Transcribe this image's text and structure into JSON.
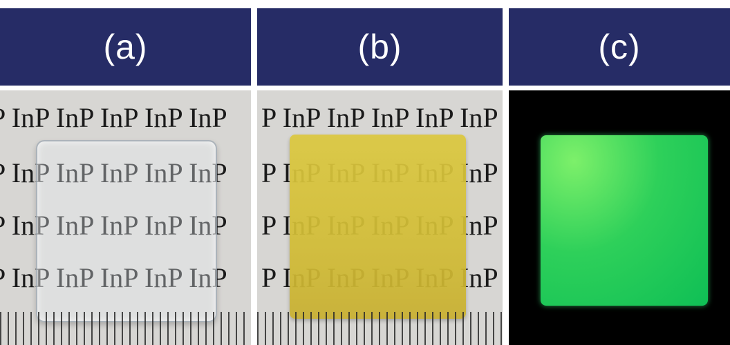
{
  "panels": [
    {
      "label": "(a)"
    },
    {
      "label": "(b)"
    },
    {
      "label": "(c)"
    }
  ],
  "paper_text": "InP",
  "colors": {
    "header_bg": "#262c66",
    "header_text": "#ffffff",
    "yellow_film": "#d2bd35",
    "green_glow": "#2ed05a"
  }
}
